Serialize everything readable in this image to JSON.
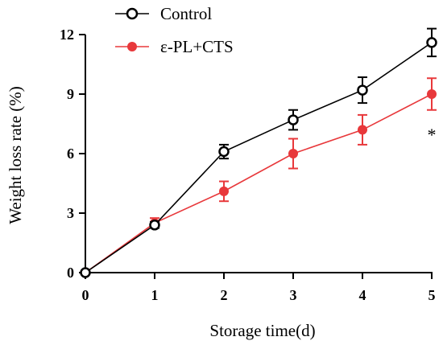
{
  "chart_data": {
    "type": "line",
    "xlabel": "Storage time(d)",
    "ylabel": "Weight loss rate (%)",
    "x": [
      0,
      1,
      2,
      3,
      4,
      5
    ],
    "xticks": [
      "0",
      "1",
      "2",
      "3",
      "4",
      "5"
    ],
    "yticks": [
      "0",
      "3",
      "6",
      "9",
      "12"
    ],
    "xlim": [
      0,
      5
    ],
    "ylim": [
      0,
      12
    ],
    "grid": false,
    "legend_position": "top-center",
    "series": [
      {
        "name": "Control",
        "color": "#000000",
        "marker": "open-circle",
        "values": [
          0,
          2.4,
          6.1,
          7.7,
          9.2,
          11.6
        ],
        "errors": [
          0,
          0.15,
          0.35,
          0.5,
          0.65,
          0.7
        ]
      },
      {
        "name": "ε-PL+CTS",
        "color": "#e8383b",
        "marker": "filled-circle",
        "values": [
          0,
          2.5,
          4.1,
          6.0,
          7.2,
          9.0
        ],
        "errors": [
          0,
          0.25,
          0.5,
          0.75,
          0.75,
          0.8
        ]
      }
    ],
    "annotations": [
      {
        "text": "*",
        "x": 5,
        "y": 6.9
      }
    ]
  }
}
